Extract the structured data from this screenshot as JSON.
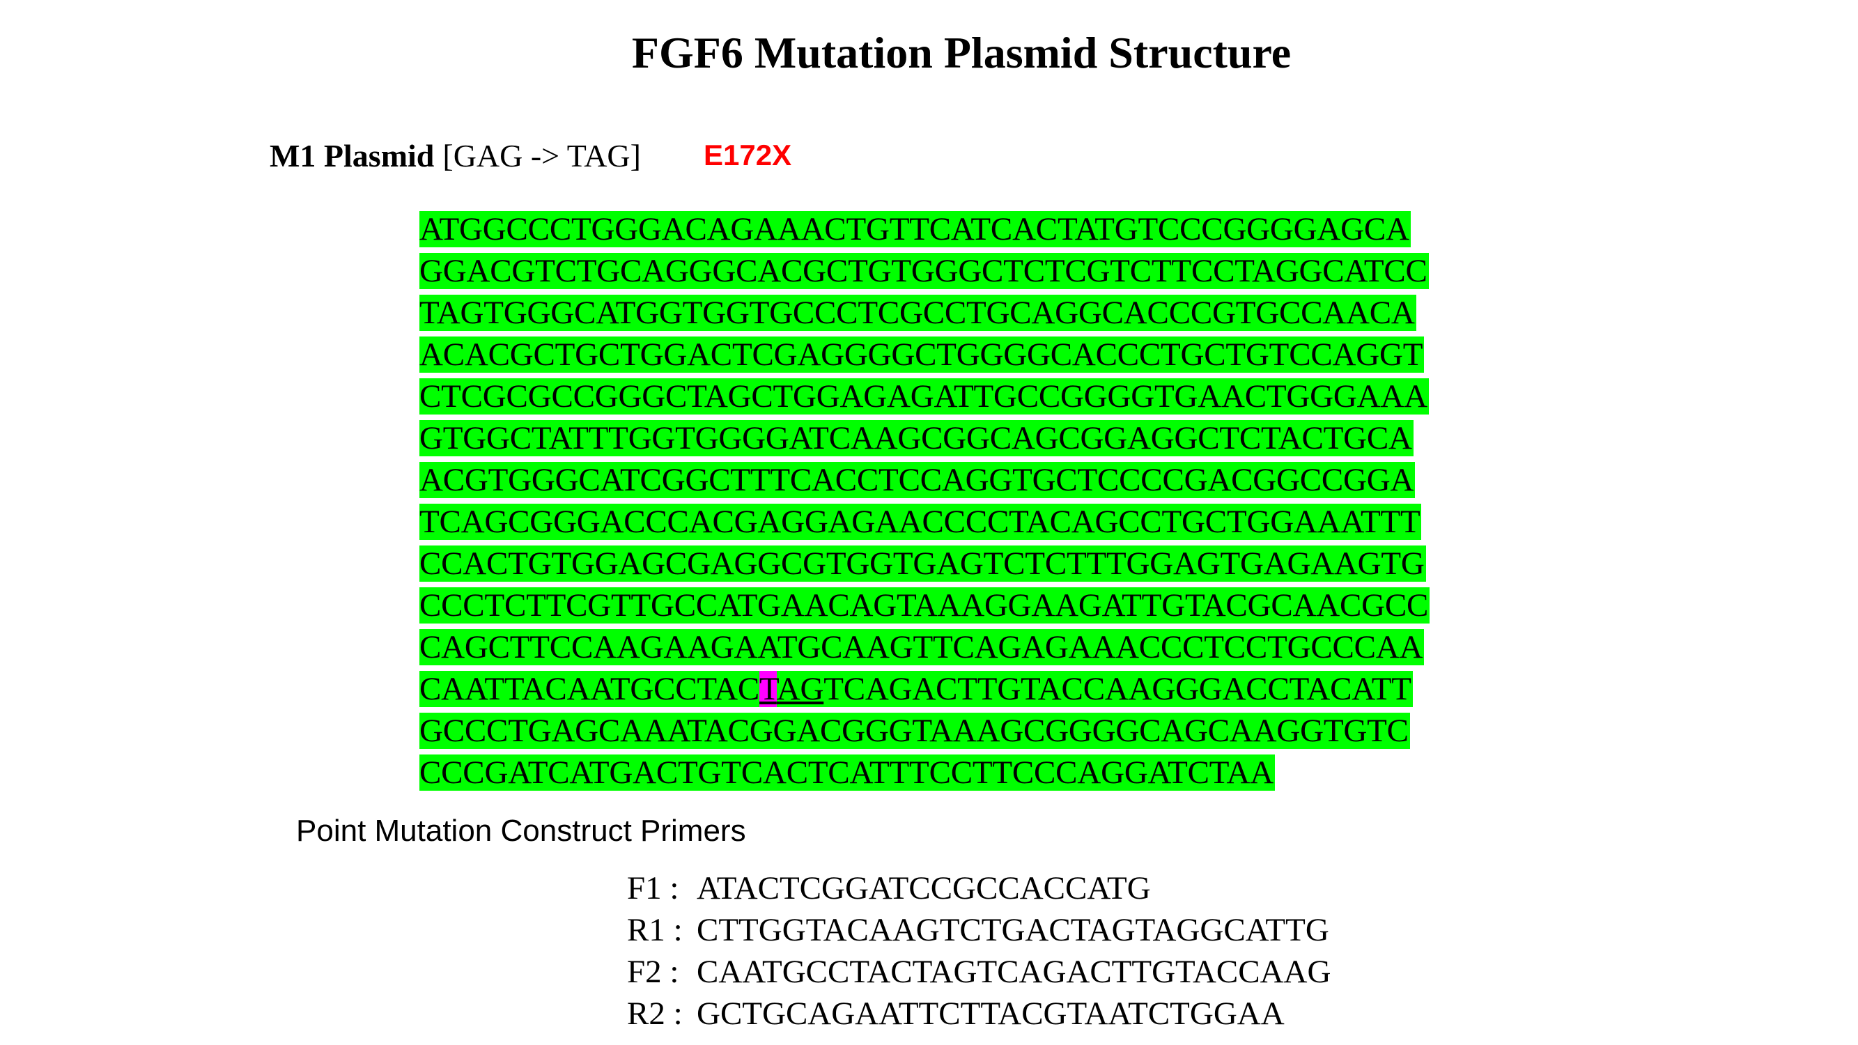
{
  "title": "FGF6 Mutation Plasmid Structure",
  "plasmid": {
    "name": "M1 Plasmid",
    "codon_change": "[GAG -> TAG]",
    "mutation": "E172X"
  },
  "sequence_lines": [
    "ATGGCCCTGGGACAGAAACTGTTCATCACTATGTCCCGGGGAGCA",
    "GGACGTCTGCAGGGCACGCTGTGGGCTCTCGTCTTCCTAGGCATCC",
    "TAGTGGGCATGGTGGTGCCCTCGCCTGCAGGCACCCGTGCCAACA",
    "ACACGCTGCTGGACTCGAGGGGCTGGGGCACCCTGCTGTCCAGGT",
    "CTCGCGCCGGGCTAGCTGGAGAGATTGCCGGGGTGAACTGGGAAA",
    "GTGGCTATTTGGTGGGGATCAAGCGGCAGCGGAGGCTCTACTGCA",
    "ACGTGGGCATCGGCTTTCACCTCCAGGTGCTCCCCGACGGCCGGA",
    "TCAGCGGGACCCACGAGGAGAACCCCTACAGCCTGCTGGAAATTT",
    "CCACTGTGGAGCGAGGCGTGGTGAGTCTCTTTGGAGTGAGAAGTG",
    "CCCTCTTCGTTGCCATGAACAGTAAAGGAAGATTGTACGCAACGCC",
    "CAGCTTCCAAGAAGAATGCAAGTTCAGAGAAACCCTCCTGCCCAA"
  ],
  "mutation_line": {
    "before": "CAATTACAATGCCTAC",
    "mutated_base": "T",
    "codon_rest": "AG",
    "after": "TCAGACTTGTACCAAGGGACCTACATT"
  },
  "sequence_tail": [
    "GCCCTGAGCAAATACGGACGGGTAAAGCGGGGCAGCAAGGTGTC",
    "CCCGATCATGACTGTCACTCATTTCCTTCCCAGGATCTAA"
  ],
  "primers_heading": "Point Mutation Construct Primers",
  "primers": [
    {
      "name": "F1",
      "sep": ":",
      "seq": "ATACTCGGATCCGCCACCATG"
    },
    {
      "name": "R1",
      "sep": ":",
      "seq": "CTTGGTACAAGTCTGACTAGTAGGCATTG"
    },
    {
      "name": "F2",
      "sep": ":",
      "seq": "CAATGCCTACTAGTCAGACTTGTACCAAG"
    },
    {
      "name": "R2",
      "sep": ":",
      "seq": "GCTGCAGAATTCTTACGTAATCTGGAA"
    }
  ],
  "colors": {
    "sequence_highlight": "#00ff00",
    "mutation_highlight": "#ff00ff",
    "mutation_label": "#ff0000"
  }
}
